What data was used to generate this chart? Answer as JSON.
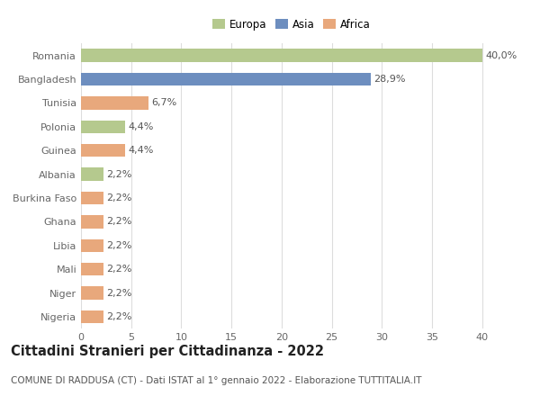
{
  "countries": [
    "Romania",
    "Bangladesh",
    "Tunisia",
    "Polonia",
    "Guinea",
    "Albania",
    "Burkina Faso",
    "Ghana",
    "Libia",
    "Mali",
    "Niger",
    "Nigeria"
  ],
  "values": [
    40.0,
    28.9,
    6.7,
    4.4,
    4.4,
    2.2,
    2.2,
    2.2,
    2.2,
    2.2,
    2.2,
    2.2
  ],
  "labels": [
    "40,0%",
    "28,9%",
    "6,7%",
    "4,4%",
    "4,4%",
    "2,2%",
    "2,2%",
    "2,2%",
    "2,2%",
    "2,2%",
    "2,2%",
    "2,2%"
  ],
  "colors": [
    "#b5c98e",
    "#6d8ebf",
    "#e8a87c",
    "#b5c98e",
    "#e8a87c",
    "#b5c98e",
    "#e8a87c",
    "#e8a87c",
    "#e8a87c",
    "#e8a87c",
    "#e8a87c",
    "#e8a87c"
  ],
  "legend_labels": [
    "Europa",
    "Asia",
    "Africa"
  ],
  "legend_colors": [
    "#b5c98e",
    "#6d8ebf",
    "#e8a87c"
  ],
  "title": "Cittadini Stranieri per Cittadinanza - 2022",
  "subtitle": "COMUNE DI RADDUSA (CT) - Dati ISTAT al 1° gennaio 2022 - Elaborazione TUTTITALIA.IT",
  "xlim": [
    0,
    42
  ],
  "xticks": [
    0,
    5,
    10,
    15,
    20,
    25,
    30,
    35,
    40
  ],
  "bar_height": 0.55,
  "background_color": "#ffffff",
  "grid_color": "#dddddd",
  "legend_fontsize": 8.5,
  "title_fontsize": 10.5,
  "subtitle_fontsize": 7.5,
  "tick_label_fontsize": 8.0,
  "bar_label_fontsize": 8.0,
  "bar_label_color": "#555555",
  "tick_label_color": "#666666"
}
